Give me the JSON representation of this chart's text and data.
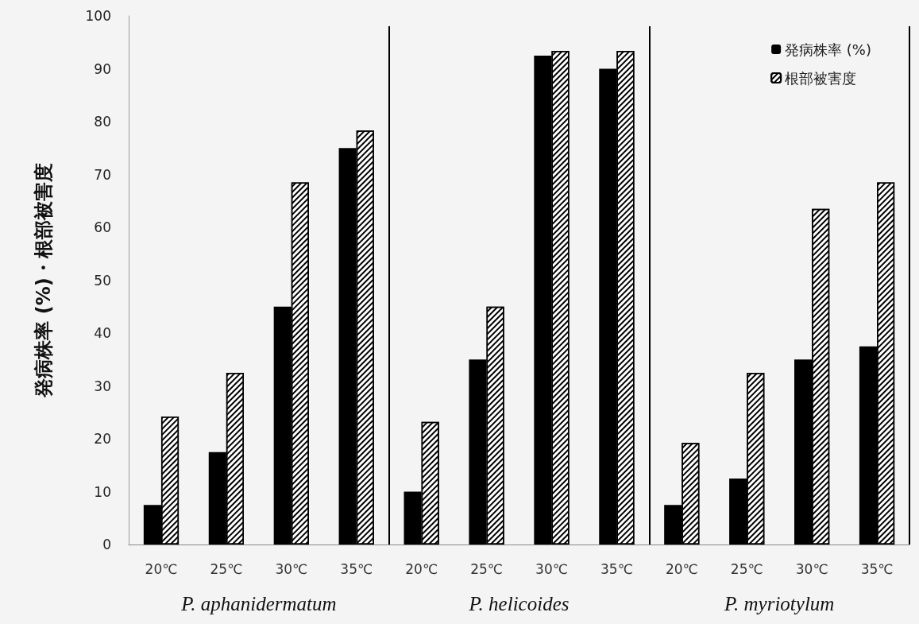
{
  "chart_data": {
    "type": "bar",
    "ylabel": "発病株率 (%)・根部被害度",
    "categories": [
      "20℃",
      "25℃",
      "30℃",
      "35℃",
      "20℃",
      "25℃",
      "30℃",
      "35℃",
      "20℃",
      "25℃",
      "30℃",
      "35℃"
    ],
    "series": [
      {
        "name": "発病株率 (%)",
        "color": "#000000",
        "values": [
          7.5,
          17.5,
          45,
          75,
          10,
          35,
          92.5,
          90,
          7.5,
          12.5,
          35,
          37.5
        ]
      },
      {
        "name": "根部被害度",
        "color": "#ffffff",
        "values": [
          24.2,
          32.5,
          68.5,
          78.3,
          23.2,
          45,
          93.4,
          93.4,
          19.2,
          32.5,
          63.5,
          68.5
        ]
      }
    ],
    "annotations": [
      "P. aphanidermatum",
      "P. helicoides",
      "P. myriotylum"
    ],
    "ylim": [
      0,
      100
    ],
    "yticks": [
      0,
      10,
      20,
      30,
      40,
      50,
      60,
      70,
      80,
      90,
      100
    ],
    "grid": false,
    "legend": "top right"
  }
}
